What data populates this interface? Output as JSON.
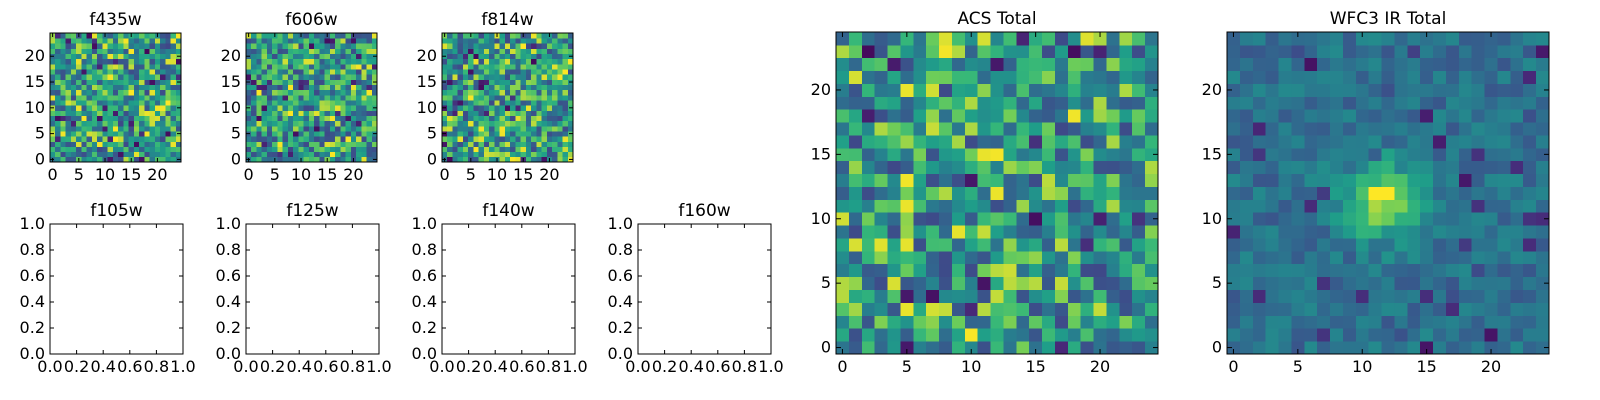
{
  "chart_data": [
    {
      "type": "heatmap",
      "title": "f435w",
      "xticks": [
        "0",
        "5",
        "10",
        "15",
        "20"
      ],
      "yticks": [
        "0",
        "5",
        "10",
        "15",
        "20"
      ],
      "xlim": [
        -0.5,
        24.5
      ],
      "ylim": [
        -0.5,
        24.5
      ],
      "grid_size": 25,
      "colormap": "viridis",
      "pattern": "noise",
      "seed": 11
    },
    {
      "type": "heatmap",
      "title": "f606w",
      "xticks": [
        "0",
        "5",
        "10",
        "15",
        "20"
      ],
      "yticks": [
        "0",
        "5",
        "10",
        "15",
        "20"
      ],
      "xlim": [
        -0.5,
        24.5
      ],
      "ylim": [
        -0.5,
        24.5
      ],
      "grid_size": 25,
      "colormap": "viridis",
      "pattern": "noise",
      "seed": 23
    },
    {
      "type": "heatmap",
      "title": "f814w",
      "xticks": [
        "0",
        "5",
        "10",
        "15",
        "20"
      ],
      "yticks": [
        "0",
        "5",
        "10",
        "15",
        "20"
      ],
      "xlim": [
        -0.5,
        24.5
      ],
      "ylim": [
        -0.5,
        24.5
      ],
      "grid_size": 25,
      "colormap": "viridis",
      "pattern": "noise",
      "seed": 37
    },
    {
      "type": "heatmap",
      "title": "f105w",
      "xticks": [
        "0.0",
        "0.2",
        "0.4",
        "0.6",
        "0.8",
        "1.0"
      ],
      "yticks": [
        "0.0",
        "0.2",
        "0.4",
        "0.6",
        "0.8",
        "1.0"
      ],
      "xlim": [
        0,
        1
      ],
      "ylim": [
        0,
        1
      ],
      "empty": true
    },
    {
      "type": "heatmap",
      "title": "f125w",
      "xticks": [
        "0.0",
        "0.2",
        "0.4",
        "0.6",
        "0.8",
        "1.0"
      ],
      "yticks": [
        "0.0",
        "0.2",
        "0.4",
        "0.6",
        "0.8",
        "1.0"
      ],
      "xlim": [
        0,
        1
      ],
      "ylim": [
        0,
        1
      ],
      "empty": true
    },
    {
      "type": "heatmap",
      "title": "f140w",
      "xticks": [
        "0.0",
        "0.2",
        "0.4",
        "0.6",
        "0.8",
        "1.0"
      ],
      "yticks": [
        "0.0",
        "0.2",
        "0.4",
        "0.6",
        "0.8",
        "1.0"
      ],
      "xlim": [
        0,
        1
      ],
      "ylim": [
        0,
        1
      ],
      "empty": true
    },
    {
      "type": "heatmap",
      "title": "f160w",
      "xticks": [
        "0.0",
        "0.2",
        "0.4",
        "0.6",
        "0.8",
        "1.0"
      ],
      "yticks": [
        "0.0",
        "0.2",
        "0.4",
        "0.6",
        "0.8",
        "1.0"
      ],
      "xlim": [
        0,
        1
      ],
      "ylim": [
        0,
        1
      ],
      "empty": true
    },
    {
      "type": "heatmap",
      "title": "ACS Total",
      "xticks": [
        "0",
        "5",
        "10",
        "15",
        "20"
      ],
      "yticks": [
        "0",
        "5",
        "10",
        "15",
        "20"
      ],
      "xlim": [
        -0.5,
        24.5
      ],
      "ylim": [
        -0.5,
        24.5
      ],
      "grid_size": 25,
      "colormap": "viridis",
      "pattern": "noise",
      "seed": 53
    },
    {
      "type": "heatmap",
      "title": "WFC3 IR Total",
      "xticks": [
        "0",
        "5",
        "10",
        "15",
        "20"
      ],
      "yticks": [
        "0",
        "5",
        "10",
        "15",
        "20"
      ],
      "xlim": [
        -0.5,
        24.5
      ],
      "ylim": [
        -0.5,
        24.5
      ],
      "grid_size": 25,
      "colormap": "viridis",
      "pattern": "source",
      "source_center": [
        11.5,
        11.5
      ],
      "seed": 71
    }
  ]
}
